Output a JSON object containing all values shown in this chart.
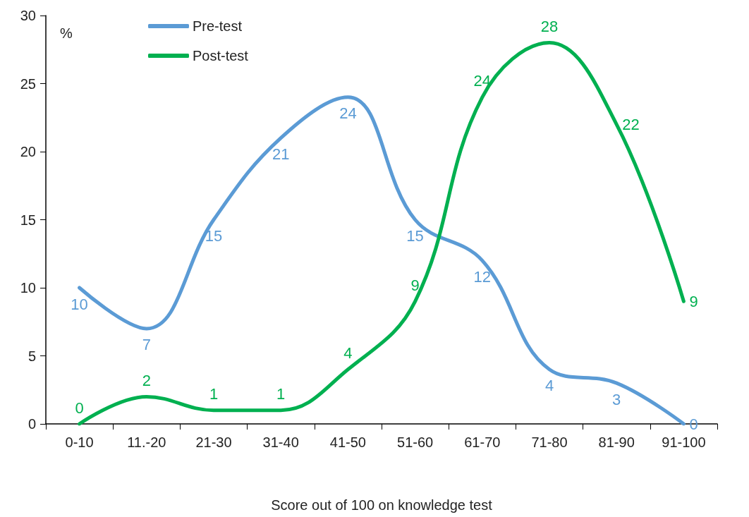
{
  "chart_data": {
    "type": "line",
    "xlabel": "Score out of 100 on knowledge test",
    "ylabel": "%",
    "categories": [
      "0-10",
      "11.-20",
      "21-30",
      "31-40",
      "41-50",
      "51-60",
      "61-70",
      "71-80",
      "81-90",
      "91-100"
    ],
    "series": [
      {
        "name": "Pre-test",
        "color": "#5b9bd5",
        "values": [
          10,
          7,
          15,
          21,
          24,
          15,
          12,
          4,
          3,
          0
        ]
      },
      {
        "name": "Post-test",
        "color": "#00b050",
        "values": [
          0,
          2,
          1,
          1,
          4,
          9,
          24,
          28,
          22,
          9
        ]
      }
    ],
    "ylim": [
      0,
      30
    ],
    "yticks": [
      0,
      5,
      10,
      15,
      20,
      25,
      30
    ],
    "grid": false,
    "legend": "top left",
    "marker": "none",
    "line_style": "solid",
    "data_labels": true
  }
}
